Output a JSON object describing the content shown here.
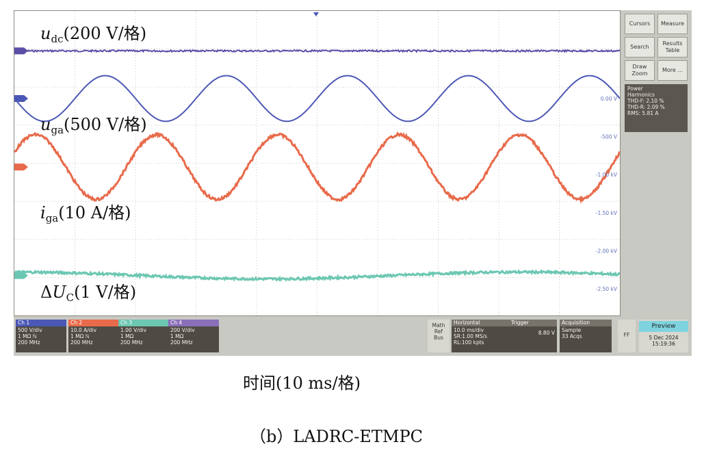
{
  "chart_data": {
    "type": "line",
    "series": [
      {
        "label_base": "u",
        "label_sub": "dc",
        "label_scale": "(200 V/格)",
        "color": "#5b4ea8",
        "kind": "flat",
        "level": 0
      },
      {
        "label_base": "u",
        "label_sub": "ga",
        "label_scale": "(500 V/格)",
        "color": "#4b57b5",
        "kind": "sine",
        "cycles": 5,
        "amplitude_div": 0.6
      },
      {
        "label_base": "i",
        "label_sub": "ga",
        "label_scale": "(10 A/格)",
        "color": "#e86a4a",
        "kind": "sine",
        "cycles": 5,
        "amplitude_div": 0.85
      },
      {
        "label_prefix": "Δ",
        "label_base": "U",
        "label_sub": "C",
        "label_scale": "(1 V/格)",
        "color": "#6cc7b2",
        "kind": "ripple",
        "amplitude_div": 0.15
      }
    ],
    "xlabel": "时间(10 ms/格)",
    "grid": true,
    "divisions_x": 10,
    "divisions_y": 8
  },
  "caption": "（b）LADRC-ETMPC",
  "scope": {
    "right_labels": [
      "0.00 V",
      "-500 V",
      "-1.00 kV",
      "-1.50 kV",
      "-2.00 kV",
      "-2.50 kV"
    ],
    "buttons": {
      "cursors": "Cursors",
      "measure": "Measure",
      "search": "Search",
      "results": "Results Table",
      "draw": "Draw Zoom",
      "more": "More ..."
    },
    "measure_box": {
      "title": "Power",
      "line1": "Harmonics",
      "line2": "THD-F:   2.10 %",
      "line3": "THD-R:   2.09 %",
      "line4": "RMS:     5.81 A"
    },
    "channels": [
      {
        "name": "Ch 1",
        "l1": "500 V/div",
        "l2": "1 MΩ ℕ",
        "l3": "200 MHz",
        "color": "#4b57b5"
      },
      {
        "name": "Ch 2",
        "l1": "10.0 A/div",
        "l2": "1 MΩ ℕ",
        "l3": "200 MHz",
        "color": "#e86a4a"
      },
      {
        "name": "Ch 3",
        "l1": "1.00 V/div",
        "l2": "1 MΩ",
        "l3": "200 MHz",
        "color": "#6cc7b2"
      },
      {
        "name": "Ch 4",
        "l1": "200 V/div",
        "l2": "1 MΩ",
        "l3": "200 MHz",
        "color": "#8a6fb8"
      }
    ],
    "math": "Math Ref Bus",
    "horizontal": {
      "title": "Horizontal",
      "l1": "10.0 ms/div",
      "l2": "SR:1.00 MS/s",
      "l3": "RL:100 kpts"
    },
    "trigger": {
      "title": "Trigger",
      "l1": "8.80 V"
    },
    "acquisition": {
      "title": "Acquisition",
      "l1": "Sample",
      "l2": "33 Acqs"
    },
    "preview": {
      "title": "Preview",
      "date": "5 Dec 2024",
      "time": "15:19:36"
    },
    "ff": "FF"
  }
}
